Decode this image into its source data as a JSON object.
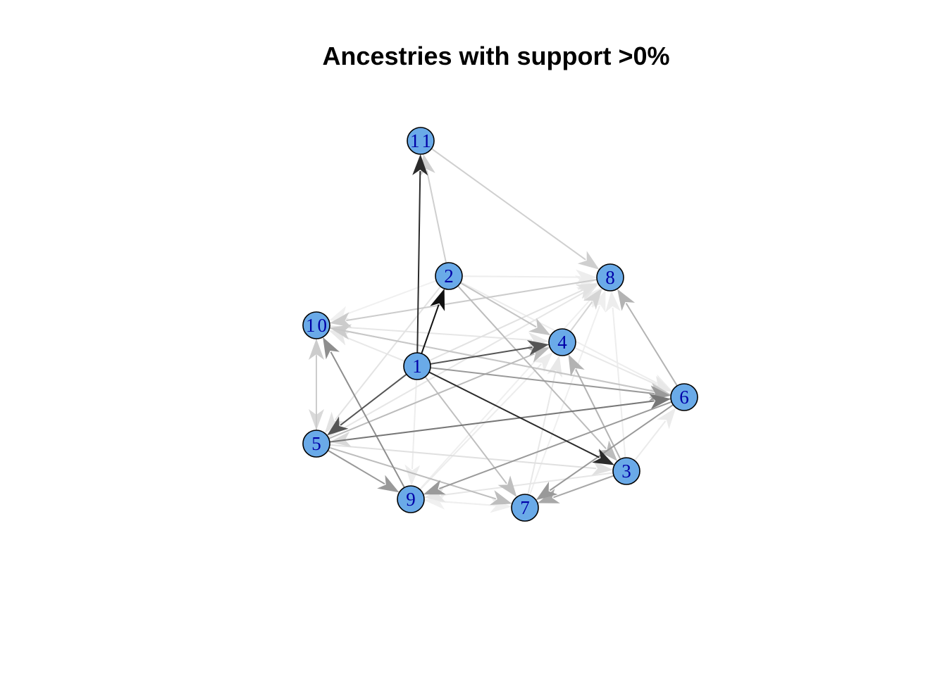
{
  "title": "Ancestries with support >0%",
  "colors": {
    "node_fill": "#6aaae8",
    "node_stroke": "#000000",
    "label": "#0000a8",
    "background": "#ffffff"
  },
  "nodes": [
    {
      "id": "1",
      "label": "1"
    },
    {
      "id": "2",
      "label": "2"
    },
    {
      "id": "3",
      "label": "3"
    },
    {
      "id": "4",
      "label": "4"
    },
    {
      "id": "5",
      "label": "5"
    },
    {
      "id": "6",
      "label": "6"
    },
    {
      "id": "7",
      "label": "7"
    },
    {
      "id": "8",
      "label": "8"
    },
    {
      "id": "9",
      "label": "9"
    },
    {
      "id": "10",
      "label": "10"
    },
    {
      "id": "11",
      "label": "11"
    }
  ],
  "edges": [
    {
      "from": "1",
      "to": "11",
      "color": "#2b2b2b"
    },
    {
      "from": "1",
      "to": "2",
      "color": "#111111"
    },
    {
      "from": "1",
      "to": "3",
      "color": "#2b2b2b"
    },
    {
      "from": "1",
      "to": "4",
      "color": "#555555"
    },
    {
      "from": "1",
      "to": "6",
      "color": "#9a9a9a"
    },
    {
      "from": "1",
      "to": "5",
      "color": "#555555"
    },
    {
      "from": "1",
      "to": "7",
      "color": "#bfbfbf"
    },
    {
      "from": "1",
      "to": "8",
      "color": "#e2e2e2"
    },
    {
      "from": "1",
      "to": "10",
      "color": "#e8e8e8"
    },
    {
      "from": "1",
      "to": "9",
      "color": "#ededed"
    },
    {
      "from": "5",
      "to": "6",
      "color": "#777777"
    },
    {
      "from": "5",
      "to": "9",
      "color": "#999999"
    },
    {
      "from": "5",
      "to": "10",
      "color": "#cccccc"
    },
    {
      "from": "5",
      "to": "4",
      "color": "#bbbbbb"
    },
    {
      "from": "5",
      "to": "3",
      "color": "#e0e0e0"
    },
    {
      "from": "5",
      "to": "8",
      "color": "#e6e6e6"
    },
    {
      "from": "5",
      "to": "7",
      "color": "#bdbdbd"
    },
    {
      "from": "6",
      "to": "9",
      "color": "#9a9a9a"
    },
    {
      "from": "6",
      "to": "7",
      "color": "#999999"
    },
    {
      "from": "6",
      "to": "8",
      "color": "#b3b3b3"
    },
    {
      "from": "6",
      "to": "10",
      "color": "#cccccc"
    },
    {
      "from": "6",
      "to": "5",
      "color": "#d9d9d9"
    },
    {
      "from": "3",
      "to": "4",
      "color": "#b3b3b3"
    },
    {
      "from": "3",
      "to": "7",
      "color": "#a8a8a8"
    },
    {
      "from": "3",
      "to": "9",
      "color": "#e6e6e6"
    },
    {
      "from": "3",
      "to": "6",
      "color": "#ebebeb"
    },
    {
      "from": "3",
      "to": "8",
      "color": "#ededed"
    },
    {
      "from": "2",
      "to": "11",
      "color": "#cfcfcf"
    },
    {
      "from": "2",
      "to": "4",
      "color": "#c4c4c4"
    },
    {
      "from": "2",
      "to": "3",
      "color": "#bcbcbc"
    },
    {
      "from": "2",
      "to": "5",
      "color": "#e3e3e3"
    },
    {
      "from": "2",
      "to": "10",
      "color": "#f0f0f0"
    },
    {
      "from": "2",
      "to": "8",
      "color": "#ededed"
    },
    {
      "from": "2",
      "to": "6",
      "color": "#ededed"
    },
    {
      "from": "11",
      "to": "8",
      "color": "#cfcfcf"
    },
    {
      "from": "9",
      "to": "10",
      "color": "#8e8e8e"
    },
    {
      "from": "9",
      "to": "7",
      "color": "#efefef"
    },
    {
      "from": "9",
      "to": "4",
      "color": "#ececec"
    },
    {
      "from": "9",
      "to": "8",
      "color": "#efefef"
    },
    {
      "from": "7",
      "to": "9",
      "color": "#f0f0f0"
    },
    {
      "from": "7",
      "to": "8",
      "color": "#efefef"
    },
    {
      "from": "7",
      "to": "4",
      "color": "#e8e8e8"
    },
    {
      "from": "4",
      "to": "8",
      "color": "#d5d5d5"
    },
    {
      "from": "4",
      "to": "6",
      "color": "#e8e8e8"
    },
    {
      "from": "8",
      "to": "10",
      "color": "#cccccc"
    },
    {
      "from": "10",
      "to": "6",
      "color": "#c7c7c7"
    },
    {
      "from": "10",
      "to": "8",
      "color": "#f0f0f0"
    },
    {
      "from": "10",
      "to": "4",
      "color": "#e6e6e6"
    },
    {
      "from": "10",
      "to": "5",
      "color": "#d9d9d9"
    }
  ]
}
